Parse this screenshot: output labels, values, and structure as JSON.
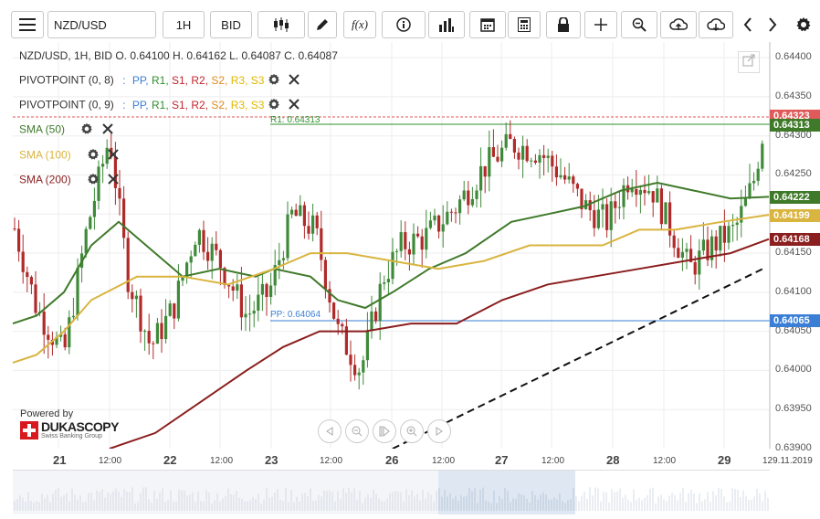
{
  "toolbar": {
    "menu_icon": "hamburger-menu-icon",
    "symbol": "NZD/USD",
    "timeframe": "1H",
    "price_side": "BID",
    "fx_label": "f(x)"
  },
  "header": {
    "ohlc": "NZD/USD, 1H, BID    O. 0.64100 H. 0.64162 L. 0.64087 C. 0.64087"
  },
  "indicators": {
    "pivot1": {
      "label": "PIVOTPOINT (0, 8)",
      "sep": ":",
      "levels": [
        "PP",
        "R1",
        "S1",
        "R2",
        "S2",
        "R3",
        "S3"
      ]
    },
    "pivot2": {
      "label": "PIVOTPOINT (0, 9)",
      "sep": ":",
      "levels": [
        "PP",
        "R1",
        "S1",
        "R2",
        "S2",
        "R3",
        "S3"
      ]
    },
    "sma50": {
      "label": "SMA (50)",
      "color": "#3f7a2a"
    },
    "sma100": {
      "label": "SMA (100)",
      "color": "#d9b43f"
    },
    "sma200": {
      "label": "SMA (200)",
      "color": "#8b1e1e"
    }
  },
  "level_colors": {
    "PP": "#3a7fd5",
    "R1": "#2f8f2f",
    "S1": "#c0262d",
    "R2": "#c0262d",
    "S2": "#e08a1f",
    "R3": "#e0b800",
    "S3": "#e0b800"
  },
  "chart_lines": {
    "r1_label": "R1: 0.64313",
    "pp_label": "PP: 0.64064"
  },
  "price_axis": {
    "ticks": [
      "0.64400",
      "0.64350",
      "0.64300",
      "0.64250",
      "0.64150",
      "0.64100",
      "0.64050",
      "0.64000",
      "0.63950",
      "0.63900"
    ],
    "markers": [
      {
        "text": "0.64323",
        "color": "#e05a5a"
      },
      {
        "text": "0.64313",
        "color": "#3f7a2a"
      },
      {
        "text": "0.64222",
        "color": "#3f7a2a"
      },
      {
        "text": "0.64199",
        "color": "#d9b43f"
      },
      {
        "text": "0.64168",
        "color": "#8b1e1e"
      },
      {
        "text": "0.64065",
        "color": "#3a7fd5"
      }
    ]
  },
  "x_axis": {
    "labels": [
      "21",
      "12:00",
      "22",
      "12:00",
      "23",
      "12:00",
      "26",
      "12:00",
      "27",
      "12:00",
      "28",
      "12:00",
      "29",
      "129.11.2019"
    ]
  },
  "branding": {
    "powered_by": "Powered by",
    "brand": "DUKASCOPY",
    "tagline": "Swiss Banking Group"
  },
  "chart_data": {
    "type": "candlestick",
    "symbol": "NZD/USD",
    "timeframe": "1H",
    "ylim": [
      0.639,
      0.6442
    ],
    "indicators": [
      "SMA (50)",
      "SMA (100)",
      "SMA (200)",
      "PIVOTPOINT (0, 8)",
      "PIVOTPOINT (0, 9)"
    ],
    "pivot_levels": {
      "R1": 0.64313,
      "PP": 0.64064
    },
    "last_values": {
      "price": 0.64323,
      "SMA50": 0.64222,
      "SMA100": 0.64199,
      "SMA200": 0.64168
    },
    "last_bar": {
      "open": 0.641,
      "high": 0.64162,
      "low": 0.64087,
      "close": 0.64087
    }
  }
}
